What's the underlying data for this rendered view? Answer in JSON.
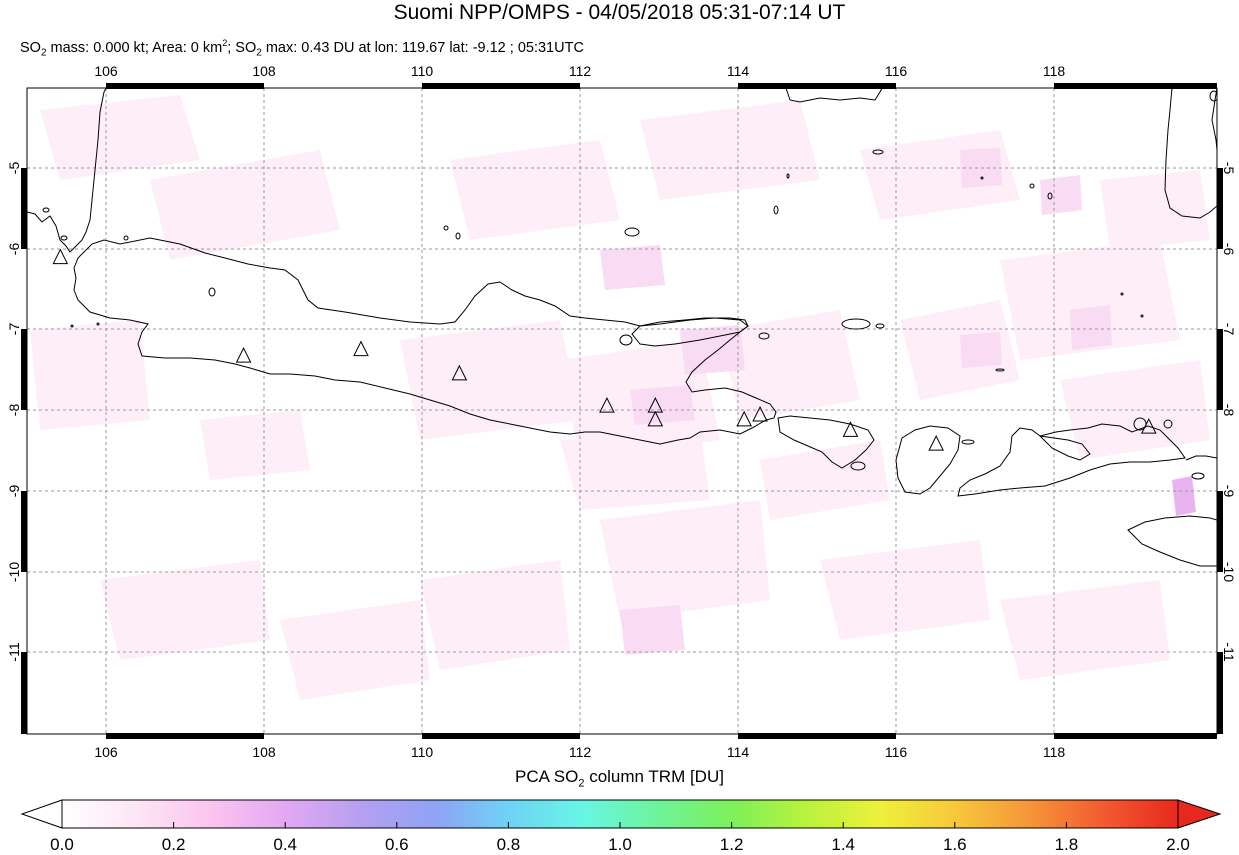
{
  "title": "Suomi NPP/OMPS - 04/05/2018 05:31-07:14 UT",
  "subtitle": {
    "so2_label": "SO",
    "so2_sub": "2",
    "mass_text": " mass: 0.000 kt; Area: 0 km",
    "area_sup": "2",
    "sep_text": "; SO",
    "so2_sub_2": "2",
    "max_text": " max: 0.43 DU at lon: 119.67 lat: -9.12 ; 05:31UTC"
  },
  "map": {
    "lon_range": [
      105,
      120
    ],
    "lat_range": [
      -12,
      -4
    ],
    "lon_ticks": [
      "106",
      "108",
      "110",
      "112",
      "114",
      "116",
      "118"
    ],
    "lat_ticks": [
      "-5",
      "-6",
      "-7",
      "-8",
      "-9",
      "-10",
      "-11"
    ],
    "grid": true,
    "volcanoes": [
      {
        "lon": 105.42,
        "lat": -6.1
      },
      {
        "lon": 107.73,
        "lat": -7.32
      },
      {
        "lon": 109.21,
        "lat": -7.24
      },
      {
        "lon": 110.45,
        "lat": -7.54
      },
      {
        "lon": 112.31,
        "lat": -7.94
      },
      {
        "lon": 112.92,
        "lat": -7.94
      },
      {
        "lon": 112.92,
        "lat": -8.11
      },
      {
        "lon": 114.04,
        "lat": -8.11
      },
      {
        "lon": 114.24,
        "lat": -8.05
      },
      {
        "lon": 115.38,
        "lat": -8.24
      },
      {
        "lon": 116.46,
        "lat": -8.41
      },
      {
        "lon": 119.14,
        "lat": -8.2
      }
    ]
  },
  "colorbar": {
    "title_pre": "PCA SO",
    "title_sub": "2",
    "title_post": " column TRM [DU]",
    "ticks": [
      "0.0",
      "0.2",
      "0.4",
      "0.6",
      "0.8",
      "1.0",
      "1.2",
      "1.4",
      "1.6",
      "1.8",
      "2.0"
    ],
    "min": 0.0,
    "max": 2.0,
    "colors": [
      "#ffffff",
      "#fde6f5",
      "#fbc4ef",
      "#e3a8f3",
      "#b7a0f0",
      "#8fa2f4",
      "#6fd2f6",
      "#67f6e5",
      "#6ef39a",
      "#7df05a",
      "#b9f23c",
      "#eef03a",
      "#f7c93a",
      "#f59638",
      "#f35a30",
      "#e8281e"
    ]
  }
}
